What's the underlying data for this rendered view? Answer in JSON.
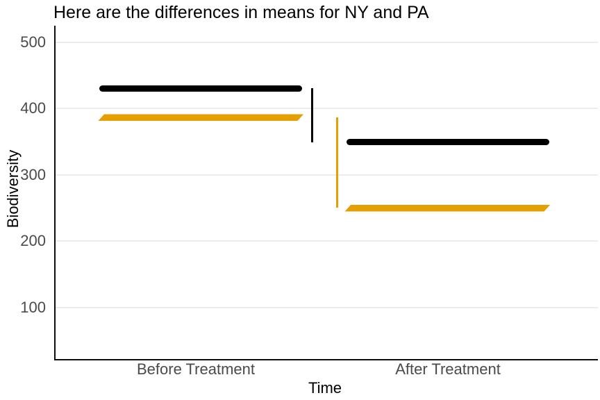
{
  "chart_data": {
    "type": "line",
    "title": "Here are the differences in means for NY and PA",
    "xlabel": "Time",
    "ylabel": "Biodiversity",
    "categories": [
      "Before Treatment",
      "After Treatment"
    ],
    "yticks": [
      500,
      400,
      300,
      200,
      100
    ],
    "ylim": [
      22,
      525
    ],
    "grid": "major-y-only",
    "legend": "none",
    "series": [
      {
        "name": "NY",
        "color": "#000000",
        "values": [
          430,
          349
        ]
      },
      {
        "name": "PA",
        "color": "#E69F00",
        "values": [
          386,
          250
        ]
      }
    ],
    "difference_segments": [
      {
        "series": "NY",
        "color": "#000000",
        "from": 430,
        "to": 349
      },
      {
        "series": "PA",
        "color": "#E69F00",
        "from": 386,
        "to": 250
      }
    ]
  }
}
